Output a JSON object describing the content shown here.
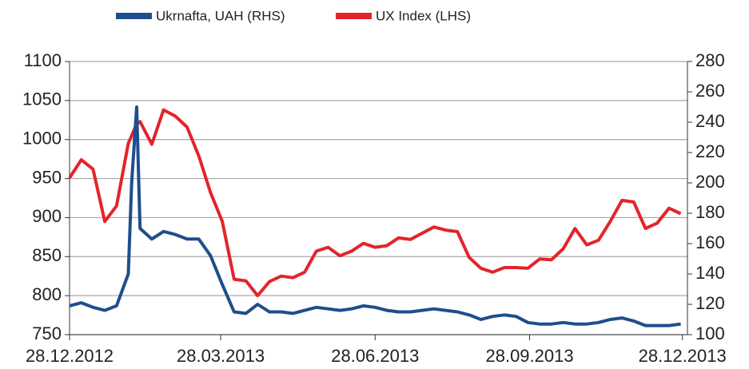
{
  "chart_data": {
    "type": "line",
    "x": [
      "2012-12-28",
      "2013-01-04",
      "2013-01-11",
      "2013-01-18",
      "2013-01-25",
      "2013-02-01",
      "2013-02-03",
      "2013-02-06",
      "2013-02-08",
      "2013-02-15",
      "2013-02-22",
      "2013-03-01",
      "2013-03-08",
      "2013-03-15",
      "2013-03-22",
      "2013-03-29",
      "2013-04-05",
      "2013-04-12",
      "2013-04-19",
      "2013-04-26",
      "2013-05-03",
      "2013-05-10",
      "2013-05-17",
      "2013-05-24",
      "2013-05-31",
      "2013-06-07",
      "2013-06-14",
      "2013-06-21",
      "2013-06-28",
      "2013-07-05",
      "2013-07-12",
      "2013-07-19",
      "2013-07-26",
      "2013-08-02",
      "2013-08-09",
      "2013-08-16",
      "2013-08-23",
      "2013-08-30",
      "2013-09-06",
      "2013-09-13",
      "2013-09-20",
      "2013-09-27",
      "2013-10-04",
      "2013-10-11",
      "2013-10-18",
      "2013-10-25",
      "2013-11-01",
      "2013-11-08",
      "2013-11-15",
      "2013-11-22",
      "2013-11-29",
      "2013-12-06",
      "2013-12-13",
      "2013-12-20",
      "2013-12-27"
    ],
    "series": [
      {
        "name": "Ukrnafta, UAH (RHS)",
        "color": "#1f4e8c",
        "axis": "y2",
        "values": [
          119,
          121,
          118,
          116,
          119,
          140,
          200,
          250,
          170,
          163,
          168,
          166,
          163,
          163,
          152,
          133,
          115,
          114,
          120,
          115,
          115,
          114,
          116,
          118,
          117,
          116,
          117,
          119,
          118,
          116,
          115,
          115,
          116,
          117,
          116,
          115,
          113,
          110,
          112,
          113,
          112,
          108,
          107,
          107,
          108,
          107,
          107,
          108,
          110,
          111,
          109,
          106,
          106,
          106,
          107
        ]
      },
      {
        "name": "UX Index (LHS)",
        "color": "#e3242b",
        "values": [
          951,
          974,
          962,
          895,
          915,
          995,
          1005,
          1020,
          1023,
          994,
          1038,
          1030,
          1016,
          979,
          932,
          895,
          821,
          819,
          800,
          818,
          825,
          823,
          830,
          857,
          862,
          851,
          857,
          867,
          862,
          864,
          874,
          872,
          880,
          888,
          884,
          882,
          849,
          835,
          830,
          836,
          836,
          835,
          847,
          846,
          860,
          886,
          865,
          871,
          895,
          922,
          920,
          886,
          893,
          912,
          905
        ]
      }
    ],
    "xlim": [
      "2012-12-28",
      "2013-12-31"
    ],
    "xticks": [
      {
        "value": "2012-12-28",
        "label": "28.12.2012"
      },
      {
        "value": "2013-03-28",
        "label": "28.03.2013"
      },
      {
        "value": "2013-06-28",
        "label": "28.06.2013"
      },
      {
        "value": "2013-09-28",
        "label": "28.09.2013"
      },
      {
        "value": "2013-12-28",
        "label": "28.12.2013"
      }
    ],
    "ylim": [
      750,
      1100
    ],
    "yticks": [
      750,
      800,
      850,
      900,
      950,
      1000,
      1050,
      1100
    ],
    "y2lim": [
      100,
      280
    ],
    "y2ticks": [
      100,
      120,
      140,
      160,
      180,
      200,
      220,
      240,
      260,
      280
    ],
    "grid": true
  }
}
